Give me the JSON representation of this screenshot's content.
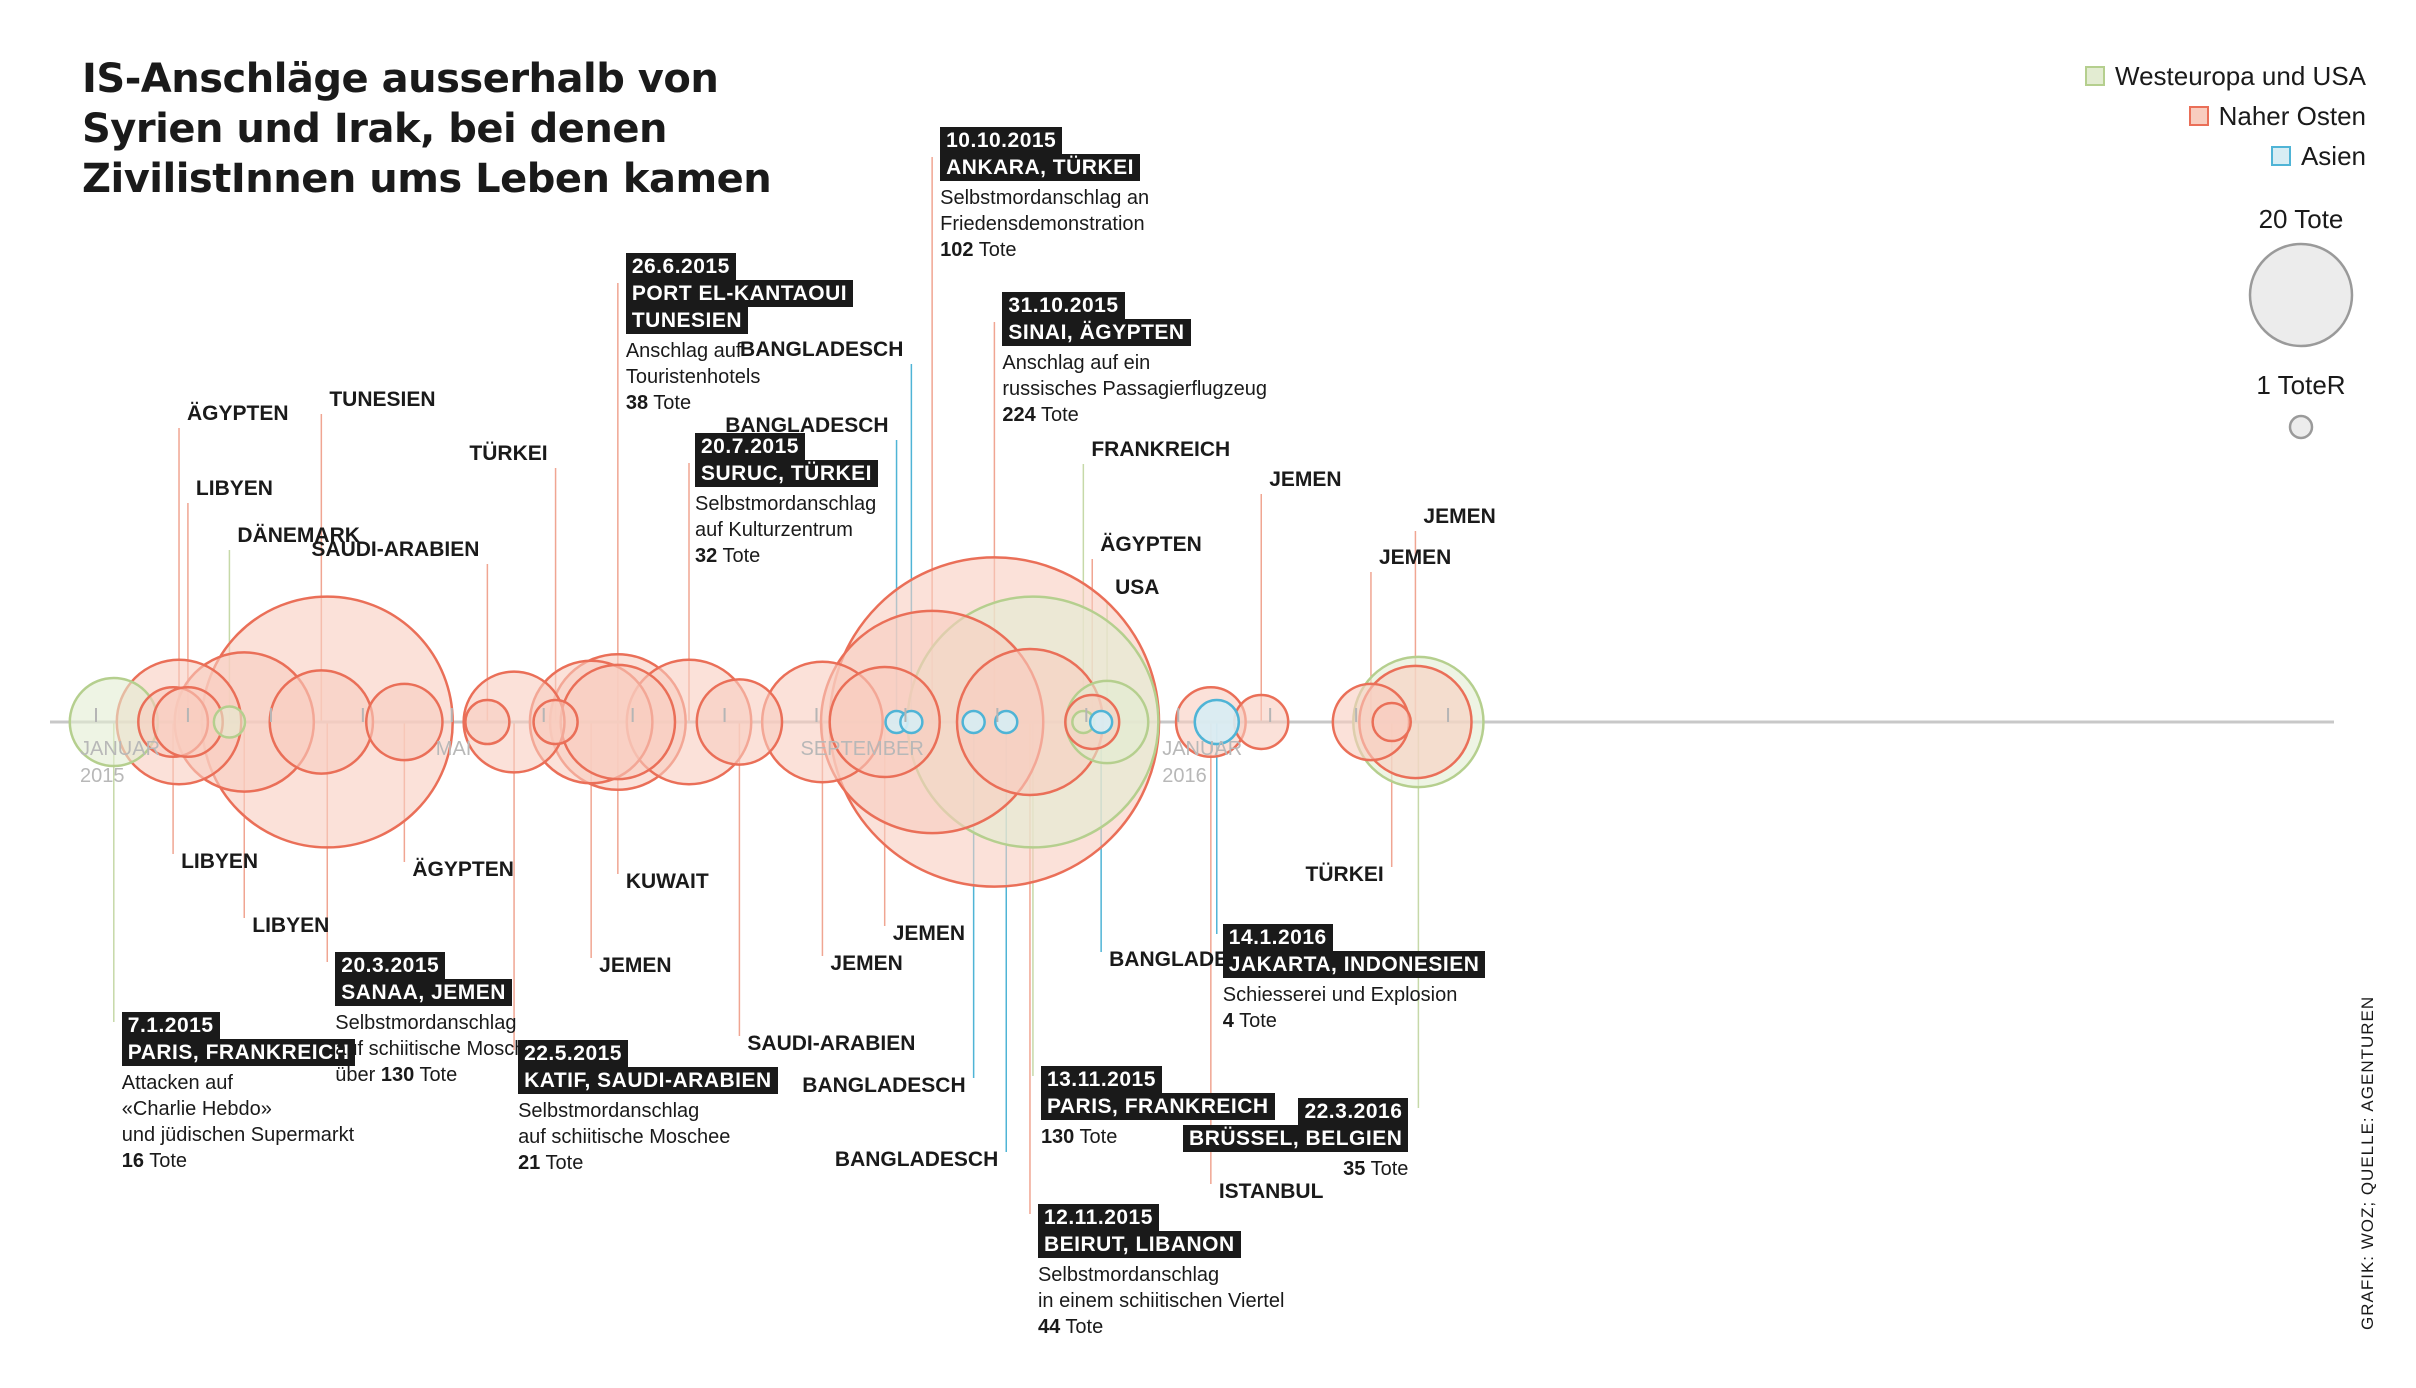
{
  "title": {
    "line1": "IS-Anschläge ausserhalb von",
    "line2": "Syrien und Irak, bei denen",
    "line3": "ZivilistInnen ums Leben kamen"
  },
  "legend": {
    "items": [
      {
        "label": "Westeuropa und USA",
        "color": "#b5cf8e",
        "fill": "#e3ecd2"
      },
      {
        "label": "Naher Osten",
        "color": "#ea6f58",
        "fill": "#f8cdbf"
      },
      {
        "label": "Asien",
        "color": "#4fb4d6",
        "fill": "#d7edf4"
      }
    ],
    "size_big": "20 Tote",
    "size_small": "1 ToteR"
  },
  "axis": {
    "ticks": [
      {
        "label": "JANUAR",
        "sub": "2015"
      },
      {
        "label": "MAI",
        "sub": ""
      },
      {
        "label": "SEPTEMBER",
        "sub": ""
      },
      {
        "label": "JANUAR",
        "sub": "2016"
      }
    ]
  },
  "credit": "GRAFIK: WOZ; QUELLE: AGENTUREN",
  "chart_data": {
    "type": "scatter",
    "title": "IS-Anschläge ausserhalb von Syrien und Irak, bei denen ZivilistInnen ums Leben kamen",
    "xlabel": "",
    "ylabel": "",
    "size_unit": "Tote",
    "regions": [
      "Westeuropa und USA",
      "Naher Osten",
      "Asien"
    ],
    "points": [
      {
        "date": "2015-01-07",
        "region": "Westeuropa und USA",
        "country": "PARIS, FRANKREICH",
        "deaths": 16
      },
      {
        "date": "2015-01-27",
        "region": "Naher Osten",
        "country": "LIBYEN",
        "deaths": 10
      },
      {
        "date": "2015-01-29",
        "region": "Naher Osten",
        "country": "ÄGYPTEN",
        "deaths": 32
      },
      {
        "date": "2015-02-01",
        "region": "Naher Osten",
        "country": "LIBYEN",
        "deaths": 10
      },
      {
        "date": "2015-02-15",
        "region": "Westeuropa und USA",
        "country": "DÄNEMARK",
        "deaths": 2
      },
      {
        "date": "2015-02-20",
        "region": "Naher Osten",
        "country": "LIBYEN",
        "deaths": 40
      },
      {
        "date": "2015-03-18",
        "region": "Naher Osten",
        "country": "TUNESIEN",
        "deaths": 22
      },
      {
        "date": "2015-03-20",
        "region": "Naher Osten",
        "country": "SANAA, JEMEN",
        "deaths": 130
      },
      {
        "date": "2015-04-15",
        "region": "Naher Osten",
        "country": "ÄGYPTEN",
        "deaths": 12
      },
      {
        "date": "2015-05-13",
        "region": "Naher Osten",
        "country": "SAUDI-ARABIEN",
        "deaths": 4
      },
      {
        "date": "2015-05-22",
        "region": "Naher Osten",
        "country": "KATIF, SAUDI-ARABIEN",
        "deaths": 21
      },
      {
        "date": "2015-06-05",
        "region": "Naher Osten",
        "country": "TÜRKEI",
        "deaths": 4
      },
      {
        "date": "2015-06-17",
        "region": "Naher Osten",
        "country": "JEMEN",
        "deaths": 31
      },
      {
        "date": "2015-06-26",
        "region": "Naher Osten",
        "country": "KUWAIT",
        "deaths": 27
      },
      {
        "date": "2015-06-26",
        "region": "Naher Osten",
        "country": "TUNESIEN",
        "deaths": 38
      },
      {
        "date": "2015-07-20",
        "region": "Naher Osten",
        "country": "SURUC, TÜRKEI",
        "deaths": 32
      },
      {
        "date": "2015-08-06",
        "region": "Naher Osten",
        "country": "SAUDI-ARABIEN",
        "deaths": 15
      },
      {
        "date": "2015-09-03",
        "region": "Naher Osten",
        "country": "JEMEN",
        "deaths": 30
      },
      {
        "date": "2015-09-24",
        "region": "Naher Osten",
        "country": "JEMEN",
        "deaths": 25
      },
      {
        "date": "2015-09-28",
        "region": "Asien",
        "country": "BANGLADESCH",
        "deaths": 1
      },
      {
        "date": "2015-10-03",
        "region": "Asien",
        "country": "BANGLADESCH",
        "deaths": 1
      },
      {
        "date": "2015-10-10",
        "region": "Naher Osten",
        "country": "ANKARA, TÜRKEI",
        "deaths": 102
      },
      {
        "date": "2015-10-24",
        "region": "Asien",
        "country": "BANGLADESCH",
        "deaths": 1
      },
      {
        "date": "2015-10-31",
        "region": "Naher Osten",
        "country": "SINAI, ÄGYPTEN",
        "deaths": 224
      },
      {
        "date": "2015-11-04",
        "region": "Asien",
        "country": "BANGLADESCH",
        "deaths": 1
      },
      {
        "date": "2015-11-12",
        "region": "Naher Osten",
        "country": "BEIRUT, LIBANON",
        "deaths": 44
      },
      {
        "date": "2015-11-13",
        "region": "Westeuropa und USA",
        "country": "PARIS, FRANKREICH",
        "deaths": 130
      },
      {
        "date": "2015-11-30",
        "region": "Westeuropa und USA",
        "country": "FRANKREICH",
        "deaths": 1
      },
      {
        "date": "2015-12-03",
        "region": "Naher Osten",
        "country": "ÄGYPTEN",
        "deaths": 6
      },
      {
        "date": "2015-12-06",
        "region": "Asien",
        "country": "BANGLADESCH",
        "deaths": 1
      },
      {
        "date": "2015-12-08",
        "region": "Westeuropa und USA",
        "country": "USA",
        "deaths": 14
      },
      {
        "date": "2016-01-12",
        "region": "Naher Osten",
        "country": "ISTANBUL",
        "deaths": 10
      },
      {
        "date": "2016-01-14",
        "region": "Asien",
        "country": "JAKARTA, INDONESIEN",
        "deaths": 4
      },
      {
        "date": "2016-01-29",
        "region": "Naher Osten",
        "country": "JEMEN",
        "deaths": 6
      },
      {
        "date": "2016-03-06",
        "region": "Naher Osten",
        "country": "JEMEN",
        "deaths": 12
      },
      {
        "date": "2016-03-13",
        "region": "Naher Osten",
        "country": "TÜRKEI",
        "deaths": 3
      },
      {
        "date": "2016-03-21",
        "region": "Naher Osten",
        "country": "JEMEN",
        "deaths": 26
      },
      {
        "date": "2016-03-22",
        "region": "Westeuropa und USA",
        "country": "BRÜSSEL, BELGIEN",
        "deaths": 35
      }
    ]
  },
  "labels": [
    {
      "i": 1,
      "text": "LIBYEN"
    },
    {
      "i": 2,
      "text": "ÄGYPTEN"
    },
    {
      "i": 3,
      "text": "LIBYEN"
    },
    {
      "i": 4,
      "text": "DÄNEMARK"
    },
    {
      "i": 5,
      "text": "LIBYEN"
    },
    {
      "i": 6,
      "text": "TUNESIEN"
    },
    {
      "i": 8,
      "text": "ÄGYPTEN"
    },
    {
      "i": 9,
      "text": "SAUDI-ARABIEN"
    },
    {
      "i": 11,
      "text": "TÜRKEI"
    },
    {
      "i": 12,
      "text": "JEMEN"
    },
    {
      "i": 13,
      "text": "KUWAIT"
    },
    {
      "i": 16,
      "text": "SAUDI-ARABIEN"
    },
    {
      "i": 17,
      "text": "JEMEN"
    },
    {
      "i": 18,
      "text": "JEMEN"
    },
    {
      "i": 19,
      "text": "BANGLADESCH"
    },
    {
      "i": 20,
      "text": "BANGLADESCH"
    },
    {
      "i": 22,
      "text": "BANGLADESCH"
    },
    {
      "i": 24,
      "text": "BANGLADESCH"
    },
    {
      "i": 27,
      "text": "FRANKREICH"
    },
    {
      "i": 28,
      "text": "ÄGYPTEN"
    },
    {
      "i": 29,
      "text": "BANGLADESCH"
    },
    {
      "i": 30,
      "text": "USA"
    },
    {
      "i": 31,
      "text": "ISTANBUL"
    },
    {
      "i": 33,
      "text": "JEMEN"
    },
    {
      "i": 34,
      "text": "JEMEN"
    },
    {
      "i": 35,
      "text": "TÜRKEI"
    },
    {
      "i": 36,
      "text": "JEMEN"
    }
  ],
  "callouts": [
    {
      "i": 0,
      "date": "7.1.2015",
      "place": "PARIS, FRANKREICH",
      "desc": [
        "Attacken auf",
        "«Charlie Hebdo»",
        "und jüdischen Supermarkt"
      ],
      "deaths_num": "16",
      "deaths_pre": "",
      "deaths_unit": "Tote"
    },
    {
      "i": 7,
      "date": "20.3.2015",
      "place": "SANAA, JEMEN",
      "desc": [
        "Selbstmordanschlag",
        "auf schiitische Moschee"
      ],
      "deaths_num": "130",
      "deaths_pre": "über ",
      "deaths_unit": "Tote"
    },
    {
      "i": 10,
      "date": "22.5.2015",
      "place": "KATIF, SAUDI-ARABIEN",
      "desc": [
        "Selbstmordanschlag",
        "auf schiitische Moschee"
      ],
      "deaths_num": "21",
      "deaths_pre": "",
      "deaths_unit": "Tote"
    },
    {
      "i": 14,
      "date": "26.6.2015",
      "place": "PORT EL-KANTAOUI",
      "place2": "TUNESIEN",
      "desc": [
        "Anschlag auf",
        "Touristenhotels"
      ],
      "deaths_num": "38",
      "deaths_pre": "",
      "deaths_unit": "Tote"
    },
    {
      "i": 15,
      "date": "20.7.2015",
      "place": "SURUC, TÜRKEI",
      "desc": [
        "Selbstmordanschlag",
        "auf Kulturzentrum"
      ],
      "deaths_num": "32",
      "deaths_pre": "",
      "deaths_unit": "Tote"
    },
    {
      "i": 21,
      "date": "10.10.2015",
      "place": "ANKARA, TÜRKEI",
      "desc": [
        "Selbstmordanschlag an",
        "Friedensdemonstration"
      ],
      "deaths_num": "102",
      "deaths_pre": "",
      "deaths_unit": "Tote"
    },
    {
      "i": 23,
      "date": "31.10.2015",
      "place": "SINAI, ÄGYPTEN",
      "desc": [
        "Anschlag auf ein",
        "russisches Passagierflugzeug"
      ],
      "deaths_num": "224",
      "deaths_pre": "",
      "deaths_unit": "Tote"
    },
    {
      "i": 26,
      "date": "13.11.2015",
      "place": "PARIS, FRANKREICH",
      "desc": [],
      "deaths_num": "130",
      "deaths_pre": "",
      "deaths_unit": "Tote"
    },
    {
      "i": 25,
      "date": "12.11.2015",
      "place": "BEIRUT, LIBANON",
      "desc": [
        "Selbstmordanschlag",
        "in einem schiitischen Viertel"
      ],
      "deaths_num": "44",
      "deaths_pre": "",
      "deaths_unit": "Tote"
    },
    {
      "i": 32,
      "date": "14.1.2016",
      "place": "JAKARTA, INDONESIEN",
      "desc": [
        "Schiesserei und Explosion"
      ],
      "deaths_num": "4",
      "deaths_pre": "",
      "deaths_unit": "Tote"
    },
    {
      "i": 37,
      "date": "22.3.2016",
      "place": "BRÜSSEL, BELGIEN",
      "desc": [],
      "deaths_num": "35",
      "deaths_pre": "",
      "deaths_unit": "Tote"
    }
  ]
}
